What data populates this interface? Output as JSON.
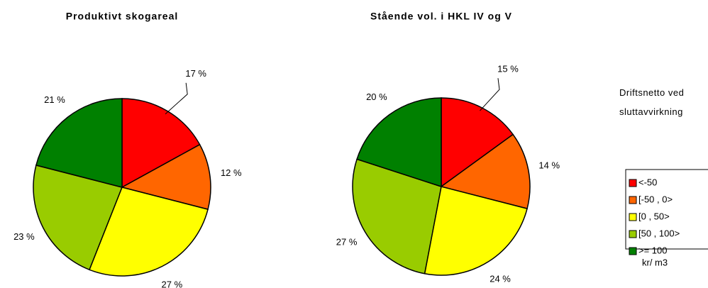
{
  "chart_data": [
    {
      "type": "pie",
      "title": "Produktivt skogareal",
      "categories": [
        "<-50",
        "[-50 , 0>",
        "[0 , 50>",
        "[50 , 100>",
        ">= 100"
      ],
      "values": [
        17,
        12,
        27,
        23,
        21
      ],
      "value_labels": [
        "17 %",
        "12 %",
        "27 %",
        "23 %",
        "21 %"
      ],
      "colors": [
        "#ff0000",
        "#ff6600",
        "#ffff00",
        "#99cc00",
        "#008000"
      ]
    },
    {
      "type": "pie",
      "title": "Stående vol. i HKL IV og V",
      "categories": [
        "<-50",
        "[-50 , 0>",
        "[0 , 50>",
        "[50 , 100>",
        ">= 100"
      ],
      "values": [
        15,
        14,
        24,
        27,
        20
      ],
      "value_labels": [
        "15 %",
        "14 %",
        "24 %",
        "27 %",
        "20 %"
      ],
      "colors": [
        "#ff0000",
        "#ff6600",
        "#ffff00",
        "#99cc00",
        "#008000"
      ]
    }
  ],
  "legend": {
    "title": "Driftsnetto ved sluttavvirkning",
    "note": "kr/ m3"
  }
}
